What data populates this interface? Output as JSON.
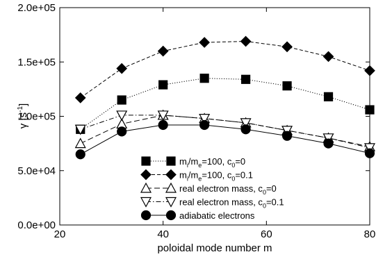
{
  "chart_data": {
    "type": "line",
    "xlabel": "poloidal mode number m",
    "ylabel": "γ [s",
    "ylabel_sup": "-1",
    "ylabel_close": "]",
    "xlim": [
      20,
      80
    ],
    "ylim": [
      0,
      200000
    ],
    "xticks": [
      20,
      40,
      60,
      80
    ],
    "xtick_labels": [
      "20",
      "40",
      "60",
      "80"
    ],
    "yticks": [
      0,
      50000,
      100000,
      150000,
      200000
    ],
    "ytick_labels": [
      "0.0e+00",
      "5.0e+04",
      "1.0e+05",
      "1.5e+05",
      "2.0e+05"
    ],
    "grid": false,
    "legend_position": "bottom-left",
    "series": [
      {
        "name": "m_i/m_e=100, c_0=0",
        "legend_parts": [
          {
            "t": "m",
            "s": "n"
          },
          {
            "t": "i",
            "s": "sub"
          },
          {
            "t": "/m",
            "s": "n"
          },
          {
            "t": "e",
            "s": "sub"
          },
          {
            "t": "=100, c",
            "s": "n"
          },
          {
            "t": "0",
            "s": "sub"
          },
          {
            "t": "=0",
            "s": "n"
          }
        ],
        "marker": "square-filled",
        "dash": "dotted",
        "x": [
          24,
          32,
          40,
          48,
          56,
          64,
          72,
          80
        ],
        "y": [
          88000,
          115000,
          129000,
          135000,
          134000,
          128000,
          118000,
          106000
        ]
      },
      {
        "name": "m_i/m_e=100, c_0=0.1",
        "legend_parts": [
          {
            "t": "m",
            "s": "n"
          },
          {
            "t": "i",
            "s": "sub"
          },
          {
            "t": "/m",
            "s": "n"
          },
          {
            "t": "e",
            "s": "sub"
          },
          {
            "t": "=100, c",
            "s": "n"
          },
          {
            "t": "0",
            "s": "sub"
          },
          {
            "t": "=0.1",
            "s": "n"
          }
        ],
        "marker": "diamond-filled",
        "dash": "dashed",
        "x": [
          24,
          32,
          40,
          48,
          56,
          64,
          72,
          80
        ],
        "y": [
          117000,
          144000,
          160000,
          168000,
          169000,
          164000,
          155000,
          142000
        ]
      },
      {
        "name": "real electron mass, c_0=0",
        "legend_parts": [
          {
            "t": "real electron mass, c",
            "s": "n"
          },
          {
            "t": "0",
            "s": "sub"
          },
          {
            "t": "=0",
            "s": "n"
          }
        ],
        "marker": "triangle-up-open",
        "dash": "longdash",
        "x": [
          24,
          32,
          40,
          48,
          56,
          64,
          72,
          80
        ],
        "y": [
          75000,
          93000,
          101000,
          98000,
          94000,
          87000,
          80000,
          72000
        ]
      },
      {
        "name": "real electron mass, c_0=0.1",
        "legend_parts": [
          {
            "t": "real electron mass, c",
            "s": "n"
          },
          {
            "t": "0",
            "s": "sub"
          },
          {
            "t": "=0.1",
            "s": "n"
          }
        ],
        "marker": "triangle-down-open",
        "dash": "dashdot",
        "x": [
          24,
          32,
          40,
          48,
          56,
          64,
          72,
          80
        ],
        "y": [
          88000,
          101000,
          101000,
          98000,
          94000,
          87000,
          80000,
          71000
        ]
      },
      {
        "name": "adiabatic electrons",
        "legend_parts": [
          {
            "t": "adiabatic electrons",
            "s": "n"
          }
        ],
        "marker": "circle-filled",
        "dash": "solid",
        "x": [
          24,
          32,
          40,
          48,
          56,
          64,
          72,
          80
        ],
        "y": [
          65000,
          86000,
          92000,
          92000,
          88000,
          82000,
          75000,
          66000
        ]
      }
    ]
  }
}
